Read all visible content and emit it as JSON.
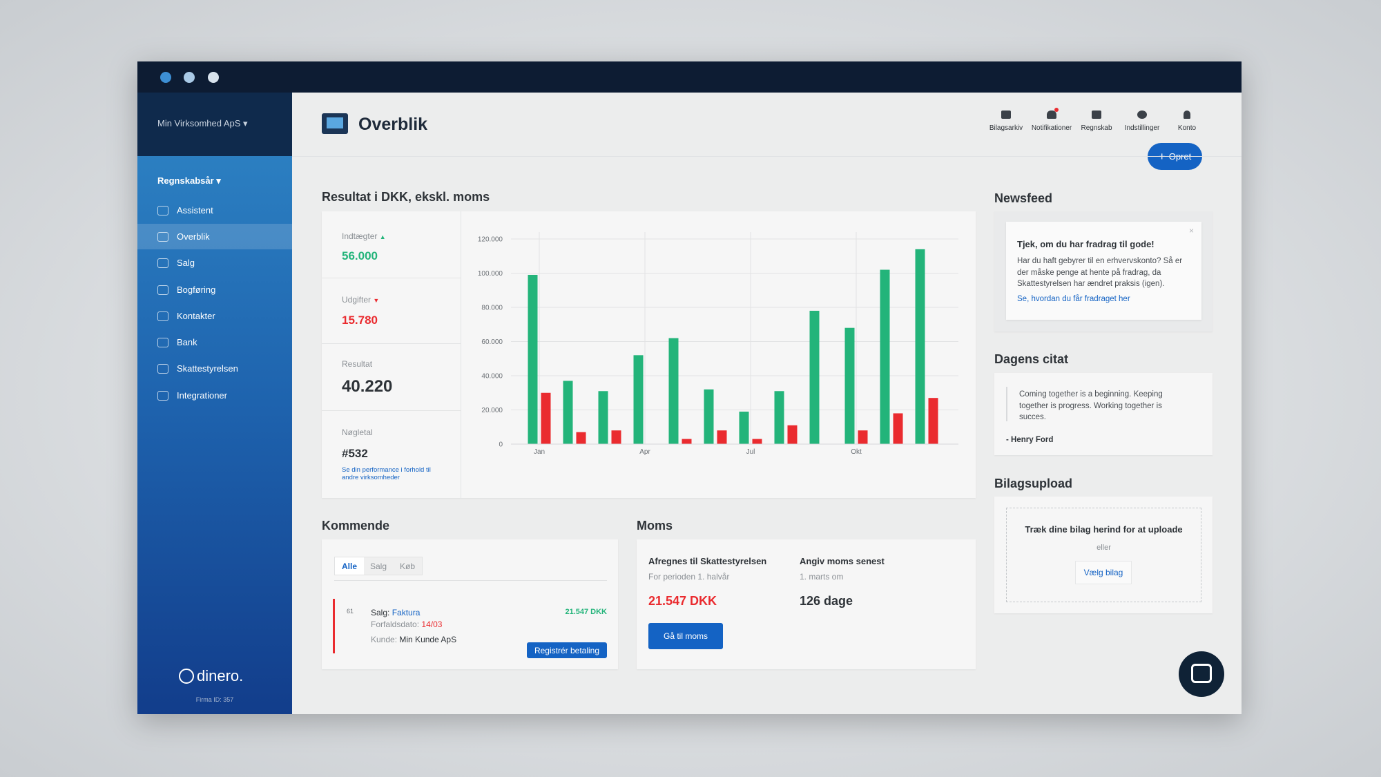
{
  "sidebar": {
    "company": "Min Virksomhed ApS",
    "fiscal_year": "Regnskabsår",
    "menu": [
      "Assistent",
      "Overblik",
      "Salg",
      "Bogføring",
      "Kontakter",
      "Bank",
      "Skattestyrelsen",
      "Integrationer"
    ],
    "logo": "dinero.",
    "firm_id": "Firma ID: 357"
  },
  "header": {
    "title": "Overblik",
    "toolbar": [
      "Bilagsarkiv",
      "Notifikationer",
      "Regnskab",
      "Indstillinger",
      "Konto"
    ],
    "create_button": "Opret"
  },
  "results": {
    "title": "Resultat i DKK, ekskl. moms",
    "stats": [
      {
        "label": "Indtægter",
        "value": "56.000"
      },
      {
        "label": "Udgifter",
        "value": "15.780"
      },
      {
        "label": "Resultat",
        "value": "40.220"
      },
      {
        "label": "Nøgletal",
        "value": "#532"
      }
    ],
    "benchmark_link": "Se din performance i forhold til andre virksomheder"
  },
  "chart_data": {
    "type": "bar",
    "categories": [
      "Jan",
      null,
      null,
      "Apr",
      null,
      null,
      "Jul",
      null,
      null,
      "Okt",
      null,
      null
    ],
    "series": [
      {
        "color": "#23b47a",
        "values": [
          99000,
          37000,
          31000,
          52000,
          62000,
          32000,
          19000,
          31000,
          78000,
          68000,
          102000,
          114000
        ]
      },
      {
        "color": "#ea2b2f",
        "values": [
          30000,
          7000,
          8000,
          0,
          3000,
          8000,
          3000,
          11000,
          0,
          8000,
          18000,
          27000
        ]
      }
    ],
    "ylim": [
      0,
      120000
    ],
    "yticks": [
      0,
      {
        "value": 20000,
        "label": "20.000"
      },
      {
        "value": 40000,
        "label": "40.000"
      },
      {
        "value": 60000,
        "label": "60.000"
      },
      {
        "value": 80000,
        "label": "80.000"
      },
      {
        "value": 100000,
        "label": "100.000"
      },
      {
        "value": 120000,
        "label": "120.000"
      }
    ],
    "grid": true
  },
  "upcoming": {
    "title": "Kommende",
    "tabs": [
      "Alle",
      "Salg",
      "Køb"
    ],
    "item": {
      "number": "61",
      "type_label": "Salg:",
      "type_link": "Faktura",
      "due_label": "Forfaldsdato:",
      "due_date": "14/03",
      "customer_label": "Kunde:",
      "customer": "Min Kunde ApS",
      "amount": "21.547 DKK",
      "button": "Registrér betaling"
    }
  },
  "vat": {
    "title": "Moms",
    "pay_title": "Afregnes til Skattestyrelsen",
    "pay_period": "For perioden 1. halvår",
    "pay_amount": "21.547 DKK",
    "deadline_title": "Angiv moms senest",
    "deadline_sub": "1. marts om",
    "deadline_value": "126 dage",
    "button": "Gå til moms"
  },
  "newsfeed": {
    "title": "Newsfeed",
    "heading": "Tjek, om du har fradrag til gode!",
    "body": "Har du haft gebyrer til en erhvervskonto? Så er der måske penge at hente på fradrag, da Skattestyrelsen har ændret praksis (igen).",
    "link": "Se, hvordan du får fradraget her"
  },
  "quote": {
    "title": "Dagens citat",
    "text": "Coming together is a beginning. Keeping together is progress. Working together is succes.",
    "author": "- Henry Ford"
  },
  "upload": {
    "title": "Bilagsupload",
    "prompt": "Træk dine bilag herind for at uploade",
    "or": "eller",
    "button": "Vælg bilag"
  }
}
